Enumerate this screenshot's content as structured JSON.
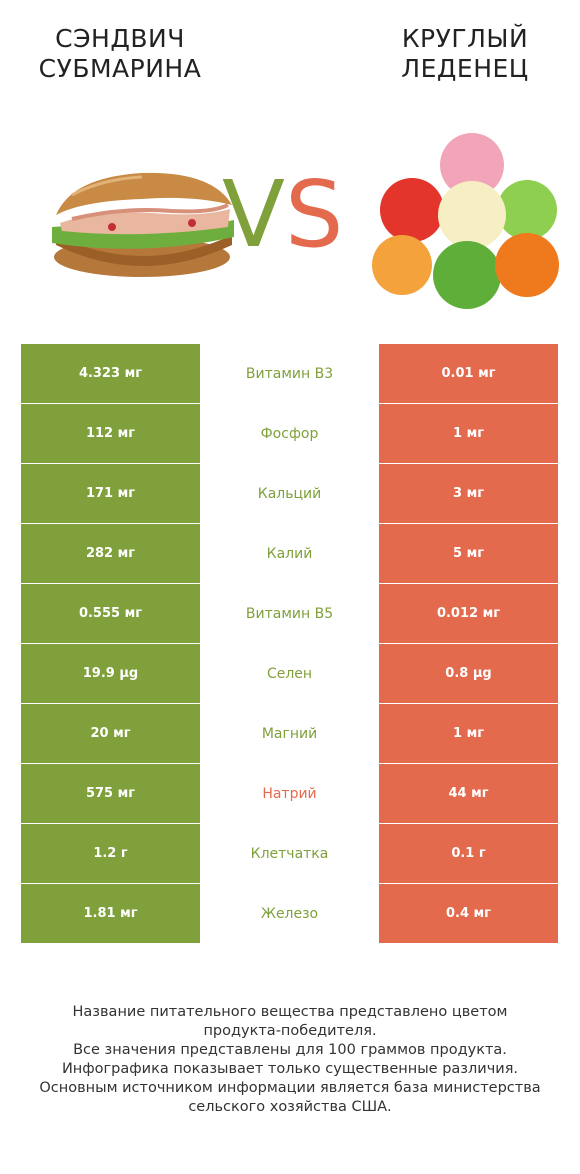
{
  "titles": {
    "left_line1": "СЭНДВИЧ",
    "left_line2": "СУБМАРИНА",
    "right_line1": "КРУГЛЫЙ",
    "right_line2": "ЛЕДЕНЕЦ"
  },
  "vs": {
    "v": "V",
    "s": "S"
  },
  "colors": {
    "left": "#7fa03a",
    "right": "#e46a4e"
  },
  "rows": [
    {
      "name": "Витамин B3",
      "left": "4.323 мг",
      "right": "0.01 мг",
      "winner": "left"
    },
    {
      "name": "Фосфор",
      "left": "112 мг",
      "right": "1 мг",
      "winner": "left"
    },
    {
      "name": "Кальций",
      "left": "171 мг",
      "right": "3 мг",
      "winner": "left"
    },
    {
      "name": "Калий",
      "left": "282 мг",
      "right": "5 мг",
      "winner": "left"
    },
    {
      "name": "Витамин B5",
      "left": "0.555 мг",
      "right": "0.012 мг",
      "winner": "left"
    },
    {
      "name": "Селен",
      "left": "19.9 µg",
      "right": "0.8 µg",
      "winner": "left"
    },
    {
      "name": "Магний",
      "left": "20 мг",
      "right": "1 мг",
      "winner": "left"
    },
    {
      "name": "Натрий",
      "left": "575 мг",
      "right": "44 мг",
      "winner": "right"
    },
    {
      "name": "Клетчатка",
      "left": "1.2 г",
      "right": "0.1 г",
      "winner": "left"
    },
    {
      "name": "Железо",
      "left": "1.81 мг",
      "right": "0.4 мг",
      "winner": "left"
    }
  ],
  "footer": {
    "line1": "Название питательного вещества представлено цветом",
    "line2": "продукта-победителя.",
    "line3": "Все значения представлены для 100 граммов продукта.",
    "line4": "Инфографика показывает только существенные различия.",
    "line5": "Основным источником информации является база министерства",
    "line6": "сельского хозяйства США."
  }
}
